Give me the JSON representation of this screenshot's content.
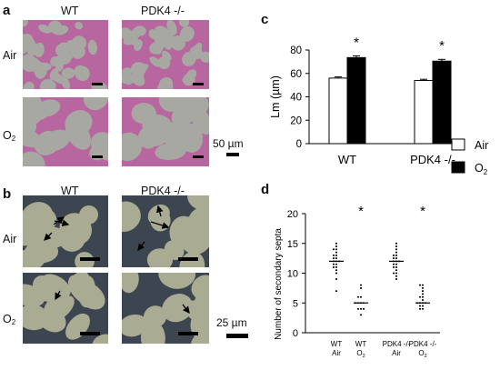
{
  "panel_a": {
    "letter": "a",
    "columns": [
      "WT",
      "PDK4 -/-"
    ],
    "rows": [
      "Air",
      "O",
      "2"
    ],
    "scale_label": "50 µm"
  },
  "panel_b": {
    "letter": "b",
    "columns": [
      "WT",
      "PDK4 -/-"
    ],
    "rows": [
      "Air",
      "O",
      "2"
    ],
    "scale_label": "25 µm"
  },
  "panel_c": {
    "letter": "c",
    "legend": [
      {
        "label": "Air",
        "color": "#ffffff"
      },
      {
        "label": "O",
        "sub": "2",
        "color": "#000000"
      }
    ]
  },
  "panel_d": {
    "letter": "d"
  },
  "colors": {
    "he_background": "#a8a8a3",
    "he_tissue": "#b7669f",
    "trichrome_background": "#a9ac93",
    "trichrome_tissue": "#3d4550"
  },
  "chart_data": [
    {
      "type": "bar",
      "title": "",
      "xlabel": "",
      "ylabel": "Lm (µm)",
      "ylim": [
        0,
        80
      ],
      "yticks": [
        0,
        20,
        40,
        60,
        80
      ],
      "categories": [
        "WT",
        "PDK4 -/-"
      ],
      "series": [
        {
          "name": "Air",
          "values": [
            56,
            54
          ],
          "errors": [
            1,
            1
          ]
        },
        {
          "name": "O2",
          "values": [
            73.5,
            70.5
          ],
          "errors": [
            1.5,
            1.5
          ]
        }
      ],
      "significance": [
        "*",
        "*"
      ],
      "legend_placement": "right"
    },
    {
      "type": "scatter",
      "title": "",
      "xlabel": "",
      "ylabel": "Number of secondary septa",
      "ylim": [
        0,
        20
      ],
      "yticks": [
        0,
        5,
        10,
        15,
        20
      ],
      "categories": [
        [
          "WT",
          "Air"
        ],
        [
          "WT",
          "O2"
        ],
        [
          "PDK4 -/-",
          "Air"
        ],
        [
          "PDK4 -/-",
          "O2"
        ]
      ],
      "groups": [
        {
          "means": 12,
          "points": [
            15,
            14.5,
            14,
            14,
            13.5,
            13,
            13,
            12.5,
            12.5,
            12,
            12,
            12,
            11.5,
            11.5,
            11,
            11,
            10.5,
            10,
            9,
            7
          ]
        },
        {
          "means": 5,
          "points": [
            8,
            7.5,
            6,
            6,
            5,
            5,
            5,
            5,
            4,
            4,
            4,
            3
          ]
        },
        {
          "means": 12,
          "points": [
            15,
            14.5,
            14,
            13.5,
            13,
            13,
            12.5,
            12.5,
            12,
            12,
            12,
            11.5,
            11.5,
            11,
            11,
            10.5,
            10,
            10,
            9.5,
            9
          ]
        },
        {
          "means": 5,
          "points": [
            8,
            8,
            7.5,
            7,
            6.5,
            6,
            6,
            5.5,
            5,
            5,
            5,
            5,
            4.5,
            4.5,
            4,
            4
          ]
        }
      ],
      "significance": [
        null,
        "*",
        null,
        "*"
      ]
    }
  ]
}
